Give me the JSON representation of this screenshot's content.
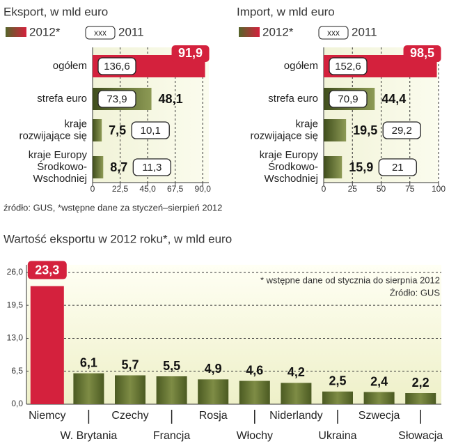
{
  "footnote": "źródło: GUS, *wstępne dane za styczeń–sierpień 2012",
  "chart_data": [
    {
      "type": "hbar",
      "title": "Eksport, w mld euro",
      "legend_marker_text": "xxx",
      "categories": [
        "ogółem",
        "strefa euro",
        "kraje\nrozwijające się",
        "kraje Europy\nŚrodkowo-\nWschodniej"
      ],
      "series": [
        {
          "name": "2012*",
          "colors": [
            "#d4213d",
            "#55662a",
            "#55662a",
            "#55662a"
          ],
          "values": [
            91.9,
            48.1,
            7.5,
            8.7
          ],
          "value_labels": [
            "91,9",
            "48,1",
            "7,5",
            "8,7"
          ]
        },
        {
          "name": "2011",
          "color": "#ffffff",
          "values": [
            136.6,
            73.9,
            10.1,
            11.3
          ],
          "value_labels": [
            "136,6",
            "73,9",
            "10,1",
            "11,3"
          ]
        }
      ],
      "xlim": [
        0,
        95
      ],
      "xticks": [
        0,
        {
          "value": 22.5,
          "label": "22,5"
        },
        {
          "value": 45,
          "label": "45,0"
        },
        {
          "value": 67.5,
          "label": "67,5"
        },
        {
          "value": 90,
          "label": "90,0"
        }
      ],
      "grid": true
    },
    {
      "type": "hbar",
      "title": "Import, w mld euro",
      "legend_marker_text": "xxx",
      "categories": [
        "ogółem",
        "strefa euro",
        "kraje\nrozwijające się",
        "kraje Europy\nŚrodkowo-\nWschodniej"
      ],
      "series": [
        {
          "name": "2012*",
          "colors": [
            "#d4213d",
            "#55662a",
            "#55662a",
            "#55662a"
          ],
          "values": [
            98.5,
            44.4,
            19.5,
            15.9
          ],
          "value_labels": [
            "98,5",
            "44,4",
            "19,5",
            "15,9"
          ]
        },
        {
          "name": "2011",
          "color": "#ffffff",
          "values": [
            152.6,
            70.9,
            29.2,
            21
          ],
          "value_labels": [
            "152,6",
            "70,9",
            "29,2",
            "21"
          ]
        }
      ],
      "xlim": [
        0,
        100
      ],
      "xticks": [
        0,
        25,
        50,
        75,
        100
      ],
      "grid": true
    },
    {
      "type": "bar",
      "title": "Wartość eksportu w 2012 roku*, w mld euro",
      "annotations": [
        "* wstępne dane od stycznia do sierpnia 2012",
        "Źródło: GUS"
      ],
      "categories": [
        "Niemcy",
        "W. Brytania",
        "Czechy",
        "Francja",
        "Rosja",
        "Włochy",
        "Niderlandy",
        "Ukraina",
        "Szwecja",
        "Słowacja"
      ],
      "values": [
        23.3,
        6.1,
        5.7,
        5.5,
        4.9,
        4.6,
        4.2,
        2.5,
        2.4,
        2.2
      ],
      "value_labels": [
        "23,3",
        "6,1",
        "5,7",
        "5,5",
        "4,9",
        "4,6",
        "4,2",
        "2,5",
        "2,4",
        "2,2"
      ],
      "colors": [
        "#d4213d",
        "#55662a",
        "#55662a",
        "#55662a",
        "#55662a",
        "#55662a",
        "#55662a",
        "#55662a",
        "#55662a",
        "#55662a"
      ],
      "ylim": [
        0,
        27.5
      ],
      "yticks": [
        {
          "value": 0,
          "label": "0,0"
        },
        {
          "value": 6.5,
          "label": "6,5"
        },
        {
          "value": 13,
          "label": "13,0"
        },
        {
          "value": 19.5,
          "label": "19,5"
        },
        {
          "value": 26,
          "label": "26,0"
        }
      ],
      "grid": true
    }
  ]
}
